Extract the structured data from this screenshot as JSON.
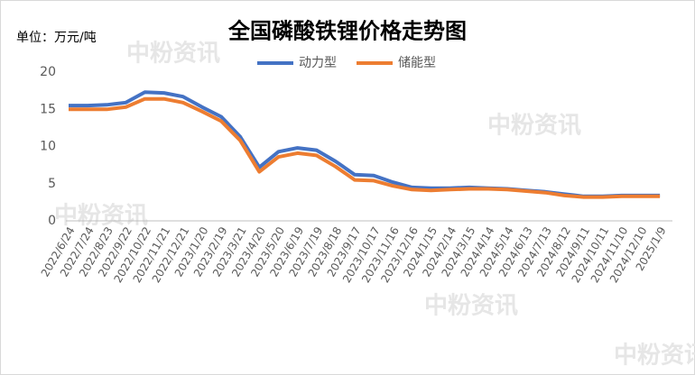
{
  "chart_data": {
    "type": "line",
    "title": "全国磷酸铁锂价格走势图",
    "unit_label": "单位：万元/吨",
    "watermark": "中粉资讯",
    "categories": [
      "2022/6/24",
      "2022/7/24",
      "2022/8/23",
      "2022/9/22",
      "2022/10/22",
      "2022/11/21",
      "2022/12/21",
      "2023/1/20",
      "2023/2/19",
      "2023/3/21",
      "2023/4/20",
      "2023/5/20",
      "2023/6/19",
      "2023/7/19",
      "2023/8/18",
      "2023/9/17",
      "2023/10/17",
      "2023/11/16",
      "2023/12/16",
      "2024/1/15",
      "2024/2/14",
      "2024/3/15",
      "2024/4/14",
      "2024/5/14",
      "2024/6/13",
      "2024/7/13",
      "2024/8/12",
      "2024/9/11",
      "2024/10/11",
      "2024/11/10",
      "2024/12/10",
      "2025/1/9"
    ],
    "series": [
      {
        "name": "动力型",
        "color": "#4472c4",
        "values": [
          15.5,
          15.5,
          15.6,
          15.9,
          17.3,
          17.2,
          16.7,
          15.3,
          14.0,
          11.3,
          7.2,
          9.3,
          9.8,
          9.5,
          8.0,
          6.2,
          6.1,
          5.2,
          4.5,
          4.4,
          4.4,
          4.5,
          4.4,
          4.3,
          4.1,
          3.9,
          3.6,
          3.3,
          3.3,
          3.4,
          3.4,
          3.4
        ]
      },
      {
        "name": "储能型",
        "color": "#ed7d31",
        "values": [
          15.0,
          15.0,
          15.0,
          15.3,
          16.4,
          16.4,
          15.9,
          14.7,
          13.4,
          10.8,
          6.6,
          8.6,
          9.1,
          8.8,
          7.3,
          5.5,
          5.4,
          4.7,
          4.2,
          4.1,
          4.2,
          4.3,
          4.3,
          4.2,
          4.0,
          3.8,
          3.4,
          3.2,
          3.2,
          3.3,
          3.3,
          3.3
        ]
      }
    ],
    "ylim": [
      0,
      20
    ],
    "yticks": [
      0,
      5,
      10,
      15,
      20
    ],
    "grid": false,
    "legend": "top"
  }
}
